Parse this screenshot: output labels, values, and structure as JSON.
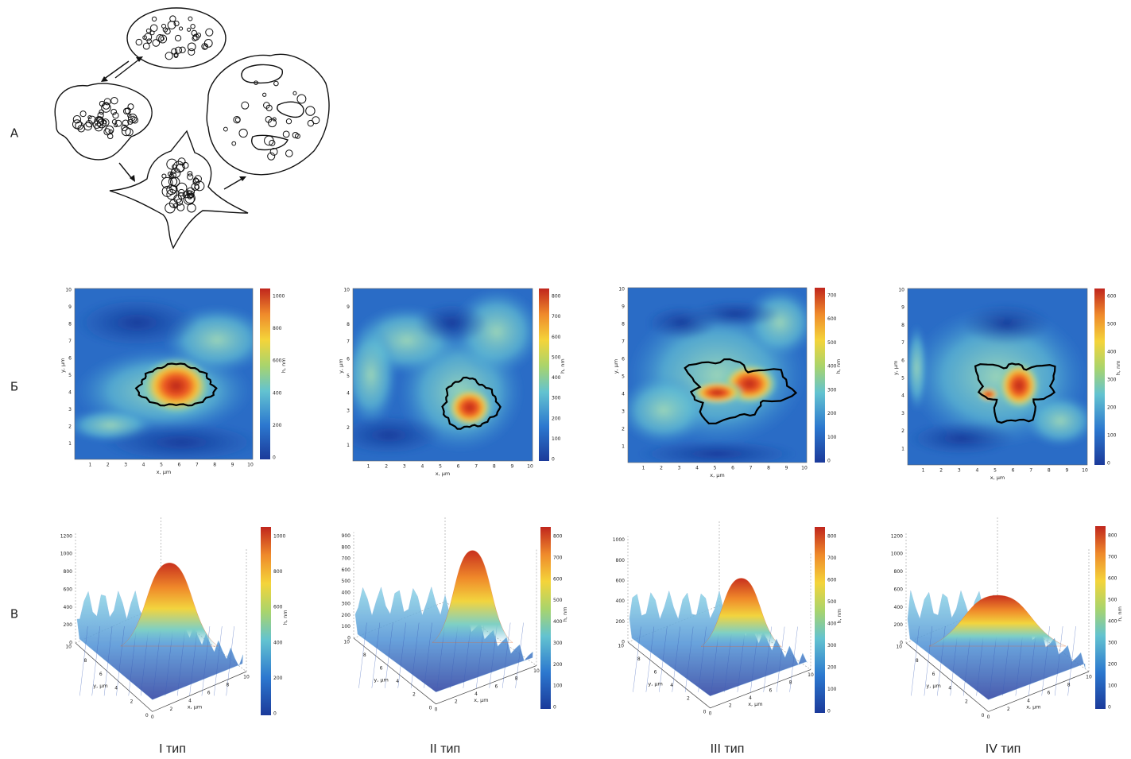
{
  "panel_labels": [
    "А",
    "Б",
    "В"
  ],
  "types": [
    "I тип",
    "II тип",
    "III тип",
    "IV тип"
  ],
  "maps": [
    {
      "x_label": "x, μm",
      "y_label": "y, μm",
      "x_ticks": [
        "1",
        "2",
        "3",
        "4",
        "5",
        "6",
        "7",
        "8",
        "9",
        "10"
      ],
      "y_ticks": [
        "1",
        "2",
        "3",
        "4",
        "5",
        "6",
        "7",
        "8",
        "9",
        "10"
      ],
      "colorbar_label": "h, nm",
      "colorbar_ticks": [
        "0",
        "200",
        "400",
        "600",
        "800",
        "1000"
      ]
    },
    {
      "x_label": "x, μm",
      "y_label": "y, μm",
      "x_ticks": [
        "1",
        "2",
        "3",
        "4",
        "5",
        "6",
        "7",
        "8",
        "9",
        "10"
      ],
      "y_ticks": [
        "1",
        "2",
        "3",
        "4",
        "5",
        "6",
        "7",
        "8",
        "9",
        "10"
      ],
      "colorbar_label": "h, nm",
      "colorbar_ticks": [
        "0",
        "100",
        "200",
        "300",
        "400",
        "500",
        "600",
        "700",
        "800"
      ]
    },
    {
      "x_label": "x, μm",
      "y_label": "y, μm",
      "x_ticks": [
        "1",
        "2",
        "3",
        "4",
        "5",
        "6",
        "7",
        "8",
        "9",
        "10"
      ],
      "y_ticks": [
        "1",
        "2",
        "3",
        "4",
        "5",
        "6",
        "7",
        "8",
        "9",
        "10"
      ],
      "colorbar_label": "h, nm",
      "colorbar_ticks": [
        "0",
        "100",
        "200",
        "300",
        "400",
        "500",
        "600",
        "700"
      ]
    },
    {
      "x_label": "x, μm",
      "y_label": "y, μm",
      "x_ticks": [
        "1",
        "2",
        "3",
        "4",
        "5",
        "6",
        "7",
        "8",
        "9",
        "10"
      ],
      "y_ticks": [
        "1",
        "2",
        "3",
        "4",
        "5",
        "6",
        "7",
        "8",
        "9",
        "10"
      ],
      "colorbar_label": "h, nm",
      "colorbar_ticks": [
        "0",
        "100",
        "200",
        "300",
        "400",
        "500",
        "600"
      ]
    }
  ],
  "surfaces": [
    {
      "x_label": "x, μm",
      "y_label": "y, μm",
      "x_ticks": [
        "0",
        "2",
        "4",
        "6",
        "8",
        "10"
      ],
      "y_ticks": [
        "0",
        "2",
        "4",
        "6",
        "8",
        "10"
      ],
      "z_ticks": [
        "0",
        "200",
        "400",
        "600",
        "800",
        "1000",
        "1200"
      ],
      "colorbar_label": "h, nm",
      "colorbar_ticks": [
        "0",
        "200",
        "400",
        "600",
        "800",
        "1000"
      ]
    },
    {
      "x_label": "x, μm",
      "y_label": "y, μm",
      "x_ticks": [
        "0",
        "2",
        "4",
        "6",
        "8",
        "10"
      ],
      "y_ticks": [
        "0",
        "2",
        "4",
        "6",
        "8",
        "10"
      ],
      "z_ticks": [
        "0",
        "100",
        "200",
        "300",
        "400",
        "500",
        "600",
        "700",
        "800",
        "900"
      ],
      "colorbar_label": "h, nm",
      "colorbar_ticks": [
        "0",
        "100",
        "200",
        "300",
        "400",
        "500",
        "600",
        "700",
        "800"
      ]
    },
    {
      "x_label": "x, μm",
      "y_label": "y, μm",
      "x_ticks": [
        "0",
        "2",
        "4",
        "6",
        "8",
        "10"
      ],
      "y_ticks": [
        "0",
        "2",
        "4",
        "6",
        "8",
        "10"
      ],
      "z_ticks": [
        "0",
        "200",
        "400",
        "600",
        "800",
        "1000"
      ],
      "colorbar_label": "h, nm",
      "colorbar_ticks": [
        "0",
        "100",
        "200",
        "300",
        "400",
        "500",
        "600",
        "700",
        "800"
      ]
    },
    {
      "x_label": "x, μm",
      "y_label": "y, μm",
      "x_ticks": [
        "0",
        "2",
        "4",
        "6",
        "8",
        "10"
      ],
      "y_ticks": [
        "0",
        "2",
        "4",
        "6",
        "8",
        "10"
      ],
      "z_ticks": [
        "0",
        "200",
        "400",
        "600",
        "800",
        "1000",
        "1200"
      ],
      "colorbar_label": "h, nm",
      "colorbar_ticks": [
        "0",
        "100",
        "200",
        "300",
        "400",
        "500",
        "600",
        "700",
        "800"
      ]
    }
  ]
}
